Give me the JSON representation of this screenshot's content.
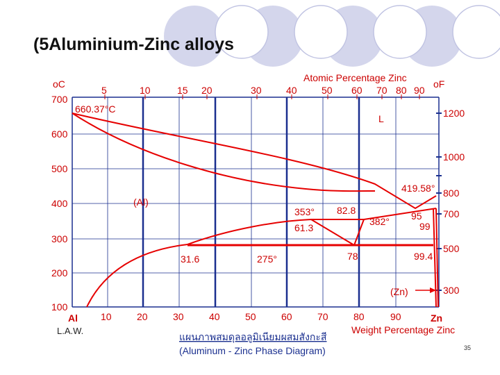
{
  "slide": {
    "title": "(5Aluminium-Zinc alloys",
    "page_number": "35"
  },
  "diagram": {
    "top_axis_title": "Atomic Percentage Zinc",
    "bottom_axis_title": "Weight Percentage Zinc",
    "left_unit": "oC",
    "right_unit": "oF",
    "left_ticks": [
      "700",
      "600",
      "500",
      "400",
      "300",
      "200",
      "100"
    ],
    "right_ticks": [
      "1200",
      "1000",
      "800",
      "700",
      "500",
      "300"
    ],
    "top_ticks": [
      "5",
      "10",
      "15",
      "20",
      "30",
      "40",
      "50",
      "60",
      "70",
      "80",
      "90"
    ],
    "bottom_ticks": [
      "10",
      "20",
      "30",
      "40",
      "50",
      "60",
      "70",
      "80",
      "90"
    ],
    "bottom_left_label": "Al",
    "bottom_right_label": "Zn",
    "credit": "L.A.W.",
    "caption_thai": "แผนภาพสมดุลอลูมิเนียมผสมสังกะสี",
    "caption_english": "(Aluminum - Zinc Phase Diagram)",
    "labels": {
      "al_melt": "660.37°C",
      "liquid": "L",
      "zn_melt": "419.58°",
      "al_phase": "(Al)",
      "zn_phase": "(Zn)",
      "t353": "353°",
      "c828": "82.8",
      "c95": "95",
      "t382": "382°",
      "c99": "99",
      "c613": "61.3",
      "c316": "31.6",
      "t275": "275°",
      "c78": "78",
      "c994": "99.4"
    },
    "colors": {
      "phase_lines": "#e60000",
      "grid": "#1a2f8f",
      "text_red": "#cc0000"
    }
  }
}
